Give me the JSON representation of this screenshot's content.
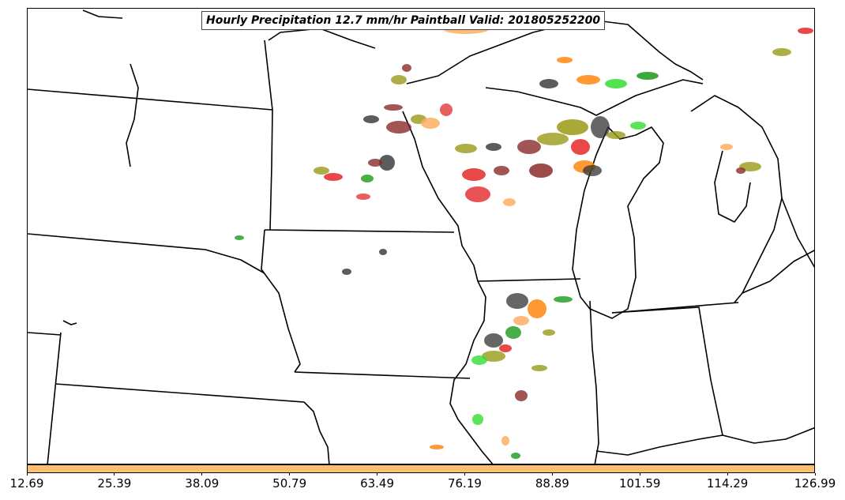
{
  "title": "Hourly Precipitation 12.7 mm/hr Paintball Valid: 201805252200",
  "colorbar": {
    "color": "#fdbf6f",
    "ticks": [
      "12.69",
      "25.39",
      "38.09",
      "50.79",
      "63.49",
      "76.19",
      "88.89",
      "101.59",
      "114.29",
      "126.99"
    ]
  },
  "paintball_colors": {
    "red": "#e31a1c",
    "orange": "#ff7f00",
    "light_orange": "#fdae61",
    "olive": "#9a9a18",
    "green": "#1a9a1a",
    "light_green": "#33dd33",
    "brown": "#8b2a2a",
    "dark_gray": "#333333"
  }
}
